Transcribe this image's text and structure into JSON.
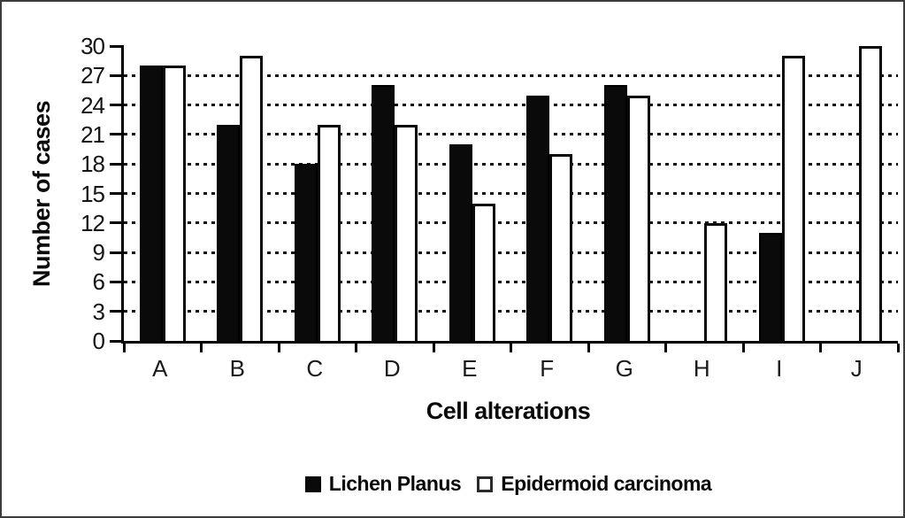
{
  "chart_data": {
    "type": "bar",
    "title": "",
    "xlabel": "Cell alterations",
    "ylabel": "Number of cases",
    "categories": [
      "A",
      "B",
      "C",
      "D",
      "E",
      "F",
      "G",
      "H",
      "I",
      "J"
    ],
    "series": [
      {
        "name": "Lichen Planus",
        "fill": "black",
        "color": "#0a0a0a",
        "values": [
          28,
          22,
          18,
          26,
          20,
          25,
          26,
          0,
          11,
          0
        ]
      },
      {
        "name": "Epidermoid carcinoma",
        "fill": "white",
        "color": "#ffffff",
        "values": [
          28,
          29,
          22,
          22,
          14,
          19,
          25,
          12,
          29,
          30
        ]
      }
    ],
    "ylim": [
      0,
      30
    ],
    "ytick_step": 3,
    "yticks": [
      0,
      3,
      6,
      9,
      12,
      15,
      18,
      21,
      24,
      27,
      30
    ],
    "gridlines": [
      3,
      6,
      9,
      12,
      15,
      18,
      21,
      24,
      27
    ],
    "grid_style": "dotted-horizontal",
    "legend_position": "bottom"
  },
  "colors": {
    "bar_fill_series1": "#0a0a0a",
    "bar_fill_series2": "#ffffff",
    "bar_outline": "#000000",
    "axis": "#000000",
    "figure_border": "#3c3c3c",
    "background": "#ffffff"
  }
}
